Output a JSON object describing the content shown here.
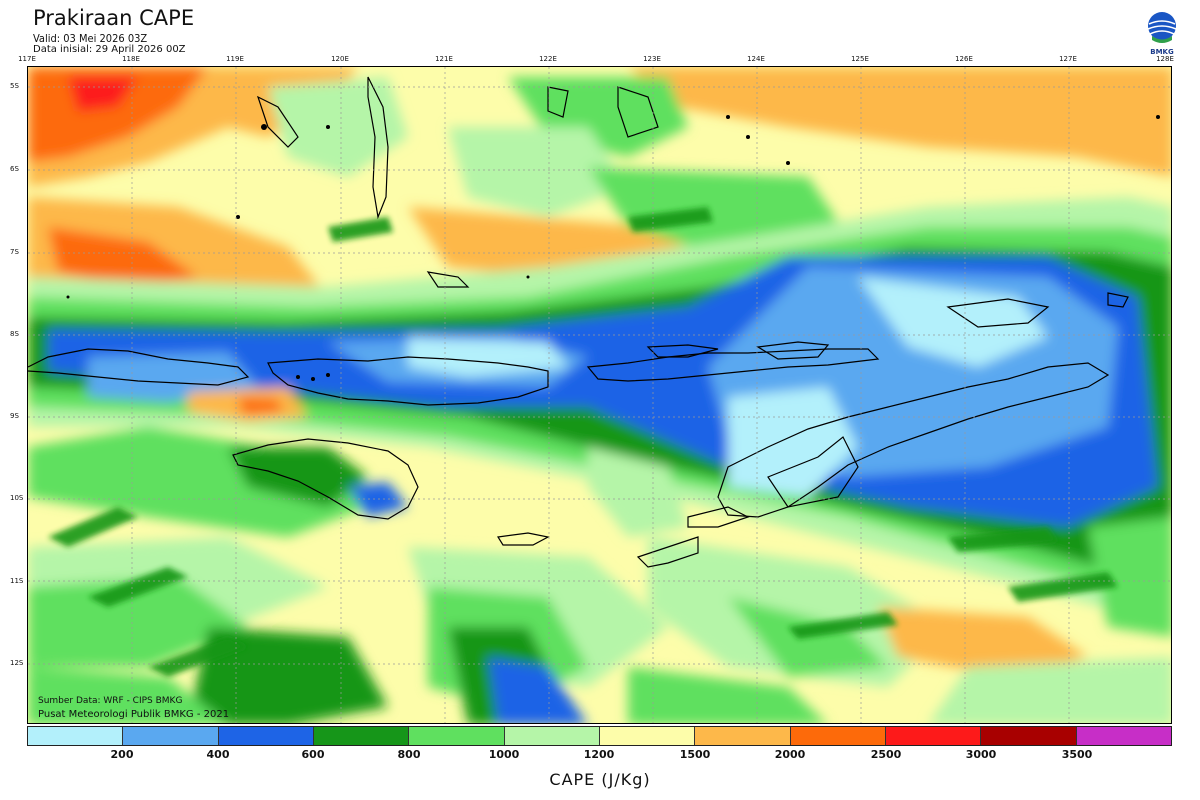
{
  "header": {
    "title": "Prakiraan CAPE",
    "valid": "Valid: 03 Mei 2026 03Z",
    "init": "Data inisial: 29 April 2026 00Z"
  },
  "logo": {
    "text": "BMKG"
  },
  "map": {
    "lon_labels": [
      "117E",
      "118E",
      "119E",
      "120E",
      "121E",
      "122E",
      "123E",
      "124E",
      "125E",
      "126E",
      "127E",
      "128E"
    ],
    "lat_labels": [
      "5S",
      "6S",
      "7S",
      "8S",
      "9S",
      "10S",
      "11S",
      "12S"
    ],
    "credit_line1": "Sumber Data: WRF - CIPS BMKG",
    "credit_line2": "Pusat Meteorologi Publik BMKG - 2021"
  },
  "legend": {
    "colors": [
      "#b3f0fb",
      "#5aa8f0",
      "#1e64e6",
      "#169619",
      "#5fe05f",
      "#b5f5a8",
      "#fdfdaa",
      "#fdb84a",
      "#fd6a0a",
      "#fd1a1a",
      "#a80000",
      "#c72ec7"
    ],
    "ticks": [
      "200",
      "400",
      "600",
      "800",
      "1000",
      "1200",
      "1500",
      "2000",
      "2500",
      "3000",
      "3500"
    ],
    "unit": "CAPE (J/Kg)"
  }
}
